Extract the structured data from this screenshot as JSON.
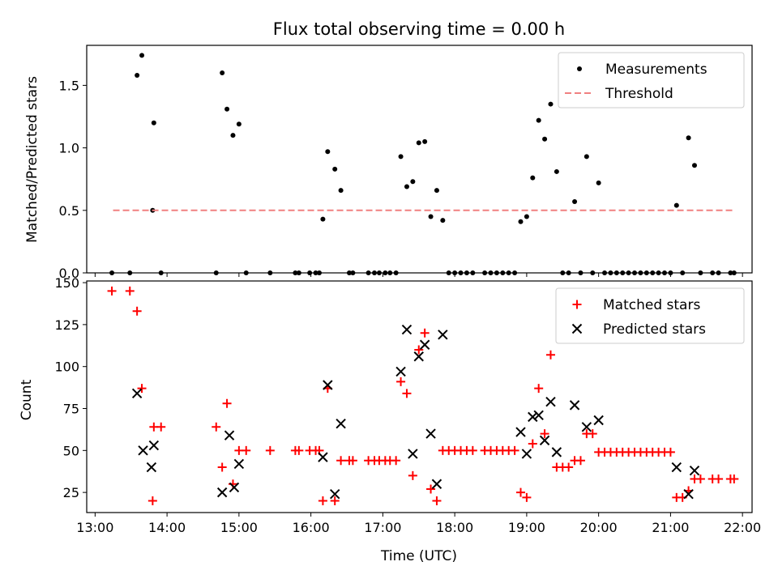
{
  "chart_data": [
    {
      "type": "scatter",
      "title": "Flux total observing time = 0.00 h",
      "xlabel": "",
      "ylabel": "Matched/Predicted stars",
      "xlim": [
        "12:53",
        "22:08"
      ],
      "ylim": [
        0,
        1.82
      ],
      "yticks": [
        0.0,
        0.5,
        1.0,
        1.5
      ],
      "ytick_labels": [
        "0.0",
        "0.5",
        "1.0",
        "1.5"
      ],
      "legend": {
        "position": "top-right"
      },
      "series": [
        {
          "name": "Measurements",
          "kind": "points",
          "color": "#000000",
          "points": [
            [
              "13:14",
              0
            ],
            [
              "13:29",
              0
            ],
            [
              "13:35",
              1.58
            ],
            [
              "13:39",
              1.74
            ],
            [
              "13:48",
              0.5
            ],
            [
              "13:49",
              1.2
            ],
            [
              "13:55",
              0
            ],
            [
              "14:41",
              0
            ],
            [
              "14:46",
              1.6
            ],
            [
              "14:50",
              1.31
            ],
            [
              "14:55",
              1.1
            ],
            [
              "15:00",
              1.19
            ],
            [
              "15:06",
              0
            ],
            [
              "15:26",
              0
            ],
            [
              "15:47",
              0
            ],
            [
              "15:50",
              0
            ],
            [
              "15:59",
              0
            ],
            [
              "16:04",
              0
            ],
            [
              "16:07",
              0
            ],
            [
              "16:10",
              0.43
            ],
            [
              "16:14",
              0.97
            ],
            [
              "16:20",
              0.83
            ],
            [
              "16:25",
              0.66
            ],
            [
              "16:32",
              0
            ],
            [
              "16:35",
              0
            ],
            [
              "16:48",
              0
            ],
            [
              "16:53",
              0
            ],
            [
              "16:57",
              0
            ],
            [
              "17:02",
              0
            ],
            [
              "17:06",
              0
            ],
            [
              "17:11",
              0
            ],
            [
              "17:15",
              0.93
            ],
            [
              "17:20",
              0.69
            ],
            [
              "17:25",
              0.73
            ],
            [
              "17:30",
              1.04
            ],
            [
              "17:35",
              1.05
            ],
            [
              "17:40",
              0.45
            ],
            [
              "17:45",
              0.66
            ],
            [
              "17:50",
              0.42
            ],
            [
              "17:55",
              0
            ],
            [
              "18:00",
              0
            ],
            [
              "18:05",
              0
            ],
            [
              "18:10",
              0
            ],
            [
              "18:15",
              0
            ],
            [
              "18:25",
              0
            ],
            [
              "18:30",
              0
            ],
            [
              "18:35",
              0
            ],
            [
              "18:40",
              0
            ],
            [
              "18:45",
              0
            ],
            [
              "18:50",
              0
            ],
            [
              "18:55",
              0.41
            ],
            [
              "19:00",
              0.45
            ],
            [
              "19:05",
              0.76
            ],
            [
              "19:10",
              1.22
            ],
            [
              "19:15",
              1.07
            ],
            [
              "19:20",
              1.35
            ],
            [
              "19:25",
              0.81
            ],
            [
              "19:30",
              0
            ],
            [
              "19:35",
              0
            ],
            [
              "19:40",
              0.57
            ],
            [
              "19:45",
              0
            ],
            [
              "19:50",
              0.93
            ],
            [
              "19:55",
              0
            ],
            [
              "20:00",
              0.72
            ],
            [
              "20:05",
              0
            ],
            [
              "20:10",
              0
            ],
            [
              "20:15",
              0
            ],
            [
              "20:20",
              0
            ],
            [
              "20:25",
              0
            ],
            [
              "20:30",
              0
            ],
            [
              "20:35",
              0
            ],
            [
              "20:40",
              0
            ],
            [
              "20:45",
              0
            ],
            [
              "20:50",
              0
            ],
            [
              "20:55",
              0
            ],
            [
              "21:00",
              0
            ],
            [
              "21:05",
              0.54
            ],
            [
              "21:10",
              0
            ],
            [
              "21:15",
              1.08
            ],
            [
              "21:20",
              0.86
            ],
            [
              "21:25",
              0
            ],
            [
              "21:35",
              0
            ],
            [
              "21:40",
              0
            ],
            [
              "21:50",
              0
            ],
            [
              "21:53",
              0
            ]
          ]
        },
        {
          "name": "Threshold",
          "kind": "dashed-line",
          "color": "#f08080",
          "points": [
            [
              "13:15",
              0.5
            ],
            [
              "21:53",
              0.5
            ]
          ]
        }
      ]
    },
    {
      "type": "scatter",
      "title": "",
      "xlabel": "Time (UTC)",
      "ylabel": "Count",
      "xlim": [
        "12:53",
        "22:08"
      ],
      "ylim": [
        13,
        151
      ],
      "yticks": [
        25,
        50,
        75,
        100,
        125,
        150
      ],
      "ytick_labels": [
        "25",
        "50",
        "75",
        "100",
        "125",
        "150"
      ],
      "xticks": [
        "13:00",
        "14:00",
        "15:00",
        "16:00",
        "17:00",
        "18:00",
        "19:00",
        "20:00",
        "21:00",
        "22:00"
      ],
      "xtick_labels": [
        "13:00",
        "14:00",
        "15:00",
        "16:00",
        "17:00",
        "18:00",
        "19:00",
        "20:00",
        "21:00",
        "22:00"
      ],
      "legend": {
        "position": "top-right"
      },
      "series": [
        {
          "name": "Matched stars",
          "kind": "plus",
          "color": "#ff0000",
          "points": [
            [
              "13:14",
              145
            ],
            [
              "13:29",
              145
            ],
            [
              "13:35",
              133
            ],
            [
              "13:39",
              87
            ],
            [
              "13:48",
              20
            ],
            [
              "13:49",
              64
            ],
            [
              "13:55",
              64
            ],
            [
              "14:41",
              64
            ],
            [
              "14:46",
              40
            ],
            [
              "14:50",
              78
            ],
            [
              "14:55",
              30
            ],
            [
              "15:00",
              50
            ],
            [
              "15:06",
              50
            ],
            [
              "15:26",
              50
            ],
            [
              "15:47",
              50
            ],
            [
              "15:50",
              50
            ],
            [
              "15:59",
              50
            ],
            [
              "16:04",
              50
            ],
            [
              "16:07",
              50
            ],
            [
              "16:10",
              20
            ],
            [
              "16:14",
              87
            ],
            [
              "16:20",
              20
            ],
            [
              "16:25",
              44
            ],
            [
              "16:32",
              44
            ],
            [
              "16:35",
              44
            ],
            [
              "16:48",
              44
            ],
            [
              "16:53",
              44
            ],
            [
              "16:57",
              44
            ],
            [
              "17:02",
              44
            ],
            [
              "17:06",
              44
            ],
            [
              "17:11",
              44
            ],
            [
              "17:15",
              91
            ],
            [
              "17:20",
              84
            ],
            [
              "17:25",
              35
            ],
            [
              "17:30",
              110
            ],
            [
              "17:35",
              120
            ],
            [
              "17:40",
              27
            ],
            [
              "17:45",
              20
            ],
            [
              "17:50",
              50
            ],
            [
              "17:55",
              50
            ],
            [
              "18:00",
              50
            ],
            [
              "18:05",
              50
            ],
            [
              "18:10",
              50
            ],
            [
              "18:15",
              50
            ],
            [
              "18:25",
              50
            ],
            [
              "18:30",
              50
            ],
            [
              "18:35",
              50
            ],
            [
              "18:40",
              50
            ],
            [
              "18:45",
              50
            ],
            [
              "18:50",
              50
            ],
            [
              "18:55",
              25
            ],
            [
              "19:00",
              22
            ],
            [
              "19:05",
              54
            ],
            [
              "19:10",
              87
            ],
            [
              "19:15",
              60
            ],
            [
              "19:20",
              107
            ],
            [
              "19:25",
              40
            ],
            [
              "19:30",
              40
            ],
            [
              "19:35",
              40
            ],
            [
              "19:40",
              44
            ],
            [
              "19:45",
              44
            ],
            [
              "19:50",
              60
            ],
            [
              "19:55",
              60
            ],
            [
              "20:00",
              49
            ],
            [
              "20:05",
              49
            ],
            [
              "20:10",
              49
            ],
            [
              "20:15",
              49
            ],
            [
              "20:20",
              49
            ],
            [
              "20:25",
              49
            ],
            [
              "20:30",
              49
            ],
            [
              "20:35",
              49
            ],
            [
              "20:40",
              49
            ],
            [
              "20:45",
              49
            ],
            [
              "20:50",
              49
            ],
            [
              "20:55",
              49
            ],
            [
              "21:00",
              49
            ],
            [
              "21:05",
              22
            ],
            [
              "21:10",
              22
            ],
            [
              "21:15",
              26
            ],
            [
              "21:20",
              33
            ],
            [
              "21:25",
              33
            ],
            [
              "21:35",
              33
            ],
            [
              "21:40",
              33
            ],
            [
              "21:50",
              33
            ],
            [
              "21:53",
              33
            ]
          ]
        },
        {
          "name": "Predicted stars",
          "kind": "cross",
          "color": "#000000",
          "points": [
            [
              "13:35",
              84
            ],
            [
              "13:40",
              50
            ],
            [
              "13:47",
              40
            ],
            [
              "13:49",
              53
            ],
            [
              "14:46",
              25
            ],
            [
              "14:52",
              59
            ],
            [
              "14:56",
              28
            ],
            [
              "15:00",
              42
            ],
            [
              "16:10",
              46
            ],
            [
              "16:14",
              89
            ],
            [
              "16:20",
              24
            ],
            [
              "16:25",
              66
            ],
            [
              "17:15",
              97
            ],
            [
              "17:20",
              122
            ],
            [
              "17:25",
              48
            ],
            [
              "17:30",
              106
            ],
            [
              "17:35",
              113
            ],
            [
              "17:40",
              60
            ],
            [
              "17:45",
              30
            ],
            [
              "17:50",
              119
            ],
            [
              "18:55",
              61
            ],
            [
              "19:00",
              48
            ],
            [
              "19:05",
              70
            ],
            [
              "19:10",
              71
            ],
            [
              "19:15",
              56
            ],
            [
              "19:20",
              79
            ],
            [
              "19:25",
              49
            ],
            [
              "19:40",
              77
            ],
            [
              "19:50",
              64
            ],
            [
              "20:00",
              68
            ],
            [
              "21:05",
              40
            ],
            [
              "21:15",
              24
            ],
            [
              "21:20",
              38
            ]
          ]
        }
      ]
    }
  ]
}
